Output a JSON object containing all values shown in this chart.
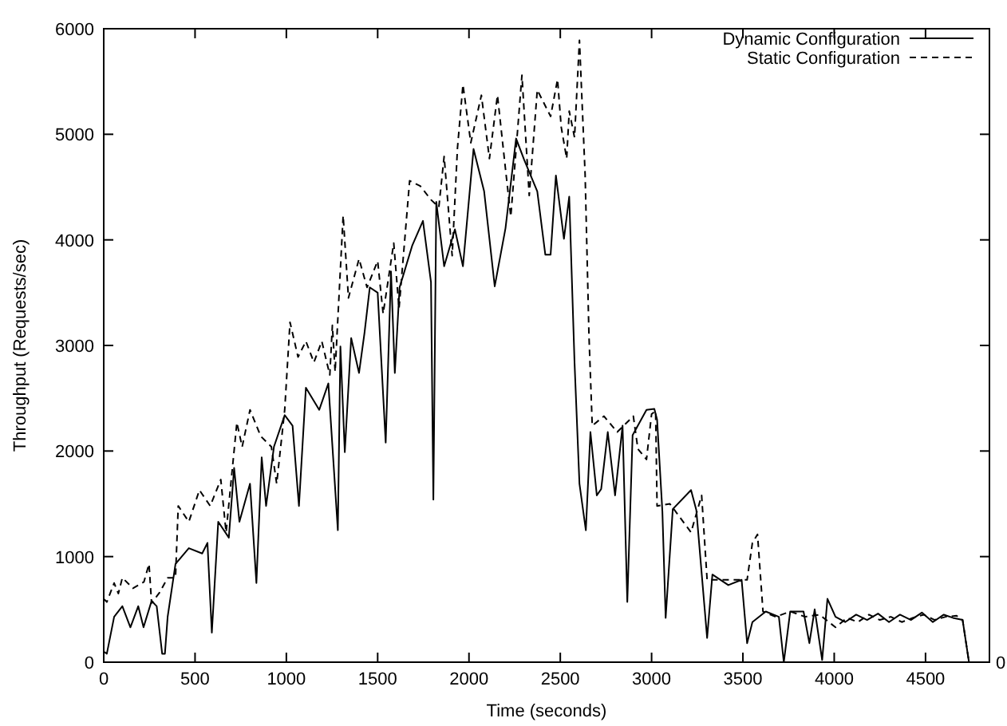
{
  "chart_data": {
    "type": "line",
    "xlabel": "Time (seconds)",
    "ylabel": "Throughput (Requests/sec)",
    "xlim": [
      0,
      4850
    ],
    "xticks": [
      0,
      500,
      1000,
      1500,
      2000,
      2500,
      3000,
      3500,
      4000,
      4500
    ],
    "ylim": [
      0,
      6000
    ],
    "yticks": [
      0,
      1000,
      2000,
      3000,
      4000,
      5000,
      6000
    ],
    "annotations": [
      "0"
    ],
    "legend": "top right",
    "grid": false,
    "series": [
      {
        "name": "Dynamic Configuration",
        "color": "#000000",
        "line_style": "solid",
        "x": [
          0,
          17,
          57,
          102,
          146,
          189,
          218,
          262,
          290,
          320,
          335,
          350,
          393,
          466,
          539,
          568,
          592,
          627,
          685,
          714,
          743,
          801,
          836,
          865,
          889,
          932,
          991,
          1034,
          1069,
          1107,
          1180,
          1230,
          1282,
          1296,
          1320,
          1355,
          1398,
          1428,
          1457,
          1500,
          1544,
          1573,
          1594,
          1620,
          1690,
          1748,
          1792,
          1805,
          1821,
          1864,
          1923,
          1967,
          2025,
          2083,
          2141,
          2200,
          2258,
          2302,
          2374,
          2418,
          2447,
          2476,
          2520,
          2549,
          2578,
          2605,
          2640,
          2665,
          2700,
          2724,
          2760,
          2800,
          2841,
          2867,
          2896,
          2972,
          3015,
          3030,
          3059,
          3077,
          3116,
          3216,
          3245,
          3304,
          3333,
          3420,
          3493,
          3523,
          3552,
          3625,
          3697,
          3724,
          3759,
          3832,
          3864,
          3893,
          3934,
          3963,
          4007,
          4060,
          4120,
          4180,
          4240,
          4300,
          4360,
          4420,
          4480,
          4540,
          4600,
          4650,
          4703,
          4738
        ],
        "values": [
          100,
          80,
          430,
          530,
          330,
          530,
          330,
          580,
          530,
          80,
          80,
          430,
          930,
          1080,
          1030,
          1130,
          280,
          1330,
          1180,
          1840,
          1330,
          1690,
          750,
          1940,
          1480,
          2040,
          2340,
          2240,
          1480,
          2600,
          2390,
          2640,
          1250,
          2990,
          1990,
          3070,
          2740,
          3120,
          3550,
          3500,
          2080,
          3700,
          2740,
          3550,
          3950,
          4180,
          3600,
          1540,
          4360,
          3750,
          4100,
          3750,
          4860,
          4460,
          3560,
          4110,
          4960,
          4760,
          4460,
          3860,
          3860,
          4610,
          4010,
          4410,
          2840,
          1690,
          1250,
          2180,
          1580,
          1640,
          2180,
          1580,
          2240,
          570,
          2150,
          2390,
          2400,
          2300,
          1430,
          420,
          1450,
          1630,
          1440,
          230,
          830,
          730,
          780,
          180,
          380,
          480,
          430,
          0,
          480,
          480,
          180,
          500,
          20,
          600,
          430,
          380,
          450,
          400,
          460,
          380,
          450,
          400,
          470,
          380,
          450,
          420,
          400,
          0
        ]
      },
      {
        "name": "Static Configuration",
        "color": "#000000",
        "line_style": "dashed",
        "x": [
          0,
          17,
          57,
          80,
          102,
          160,
          220,
          248,
          262,
          306,
          350,
          393,
          408,
          466,
          524,
          583,
          641,
          670,
          729,
          758,
          801,
          860,
          918,
          947,
          991,
          1020,
          1064,
          1107,
          1151,
          1194,
          1238,
          1252,
          1267,
          1311,
          1340,
          1398,
          1442,
          1500,
          1530,
          1588,
          1617,
          1675,
          1733,
          1792,
          1835,
          1864,
          1908,
          1937,
          1967,
          2010,
          2068,
          2112,
          2156,
          2200,
          2229,
          2290,
          2330,
          2374,
          2447,
          2485,
          2505,
          2535,
          2549,
          2578,
          2605,
          2636,
          2657,
          2675,
          2739,
          2812,
          2900,
          2925,
          2972,
          3000,
          3022,
          3030,
          3100,
          3216,
          3274,
          3304,
          3420,
          3523,
          3552,
          3580,
          3610,
          3680,
          3760,
          3840,
          3920,
          4007,
          4070,
          4130,
          4190,
          4250,
          4310,
          4370,
          4430,
          4490,
          4550,
          4610,
          4670,
          4703,
          4738
        ],
        "values": [
          600,
          570,
          750,
          650,
          800,
          700,
          760,
          930,
          560,
          660,
          800,
          800,
          1480,
          1330,
          1630,
          1480,
          1730,
          1230,
          2270,
          2040,
          2390,
          2140,
          2040,
          1690,
          2390,
          3220,
          2890,
          3040,
          2840,
          3040,
          2720,
          3190,
          2750,
          4230,
          3450,
          3820,
          3550,
          3800,
          3300,
          3970,
          3350,
          4560,
          4510,
          4380,
          4310,
          4790,
          3850,
          4870,
          5470,
          4920,
          5370,
          4770,
          5370,
          4670,
          4220,
          5560,
          4420,
          5420,
          5170,
          5520,
          5070,
          4770,
          5220,
          4970,
          5890,
          4620,
          3100,
          2240,
          2330,
          2180,
          2330,
          2020,
          1920,
          2350,
          2380,
          1480,
          1500,
          1230,
          1580,
          780,
          780,
          780,
          1130,
          1210,
          480,
          430,
          480,
          430,
          450,
          330,
          420,
          380,
          450,
          400,
          430,
          380,
          420,
          450,
          400,
          430,
          440,
          400,
          0
        ]
      }
    ]
  }
}
